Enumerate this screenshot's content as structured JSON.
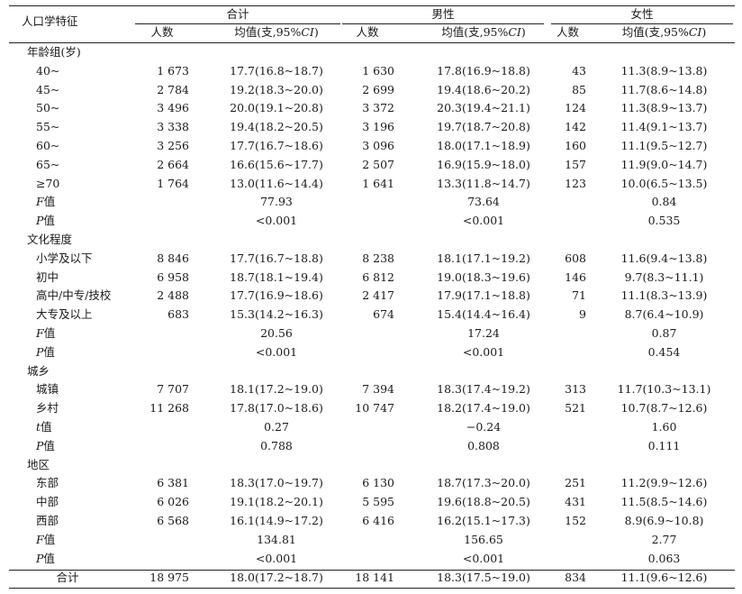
{
  "header": {
    "stub": "人口学特征",
    "groups": [
      "合计",
      "男性",
      "女性"
    ],
    "col_n": "人数",
    "col_mean_prefix": "均值(支,95%",
    "col_mean_ci": "CI",
    "col_mean_suffix": ")"
  },
  "sections": [
    {
      "title": "年龄组(岁)",
      "rows": [
        {
          "label": "40~",
          "t_n": "1 673",
          "t_mean": "17.7(16.8~18.7)",
          "m_n": "1 630",
          "m_mean": "17.8(16.9~18.8)",
          "f_n": "43",
          "f_mean": "11.3(8.9~13.8)"
        },
        {
          "label": "45~",
          "t_n": "2 784",
          "t_mean": "19.2(18.3~20.0)",
          "m_n": "2 699",
          "m_mean": "19.4(18.6~20.2)",
          "f_n": "85",
          "f_mean": "11.7(8.6~14.8)"
        },
        {
          "label": "50~",
          "t_n": "3 496",
          "t_mean": "20.0(19.1~20.8)",
          "m_n": "3 372",
          "m_mean": "20.3(19.4~21.1)",
          "f_n": "124",
          "f_mean": "11.3(8.9~13.7)"
        },
        {
          "label": "55~",
          "t_n": "3 338",
          "t_mean": "19.4(18.2~20.5)",
          "m_n": "3 196",
          "m_mean": "19.7(18.7~20.8)",
          "f_n": "142",
          "f_mean": "11.4(9.1~13.7)"
        },
        {
          "label": "60~",
          "t_n": "3 256",
          "t_mean": "17.7(16.7~18.6)",
          "m_n": "3 096",
          "m_mean": "18.0(17.1~18.9)",
          "f_n": "160",
          "f_mean": "11.1(9.5~12.7)"
        },
        {
          "label": "65~",
          "t_n": "2 664",
          "t_mean": "16.6(15.6~17.7)",
          "m_n": "2 507",
          "m_mean": "16.9(15.9~18.0)",
          "f_n": "157",
          "f_mean": "11.9(9.0~14.7)"
        },
        {
          "label": "≥70",
          "t_n": "1 764",
          "t_mean": "13.0(11.6~14.4)",
          "m_n": "1 641",
          "m_mean": "13.3(11.8~14.7)",
          "f_n": "123",
          "f_mean": "10.0(6.5~13.5)"
        }
      ],
      "stats": [
        {
          "sym": "F",
          "suffix": "值",
          "t": "77.93",
          "m": "73.64",
          "f": "0.84"
        },
        {
          "sym": "P",
          "suffix": "值",
          "t": "<0.001",
          "m": "<0.001",
          "f": "0.535"
        }
      ]
    },
    {
      "title": "文化程度",
      "rows": [
        {
          "label": "小学及以下",
          "t_n": "8 846",
          "t_mean": "17.7(16.7~18.8)",
          "m_n": "8 238",
          "m_mean": "18.1(17.1~19.2)",
          "f_n": "608",
          "f_mean": "11.6(9.4~13.8)"
        },
        {
          "label": "初中",
          "t_n": "6 958",
          "t_mean": "18.7(18.1~19.4)",
          "m_n": "6 812",
          "m_mean": "19.0(18.3~19.6)",
          "f_n": "146",
          "f_mean": "9.7(8.3~11.1)"
        },
        {
          "label": "高中/中专/技校",
          "t_n": "2 488",
          "t_mean": "17.7(16.9~18.6)",
          "m_n": "2 417",
          "m_mean": "17.9(17.1~18.8)",
          "f_n": "71",
          "f_mean": "11.1(8.3~13.9)"
        },
        {
          "label": "大专及以上",
          "t_n": "683",
          "t_mean": "15.3(14.2~16.3)",
          "m_n": "674",
          "m_mean": "15.4(14.4~16.4)",
          "f_n": "9",
          "f_mean": "8.7(6.4~10.9)"
        }
      ],
      "stats": [
        {
          "sym": "F",
          "suffix": "值",
          "t": "20.56",
          "m": "17.24",
          "f": "0.87"
        },
        {
          "sym": "P",
          "suffix": "值",
          "t": "<0.001",
          "m": "<0.001",
          "f": "0.454"
        }
      ]
    },
    {
      "title": "城乡",
      "rows": [
        {
          "label": "城镇",
          "t_n": "7 707",
          "t_mean": "18.1(17.2~19.0)",
          "m_n": "7 394",
          "m_mean": "18.3(17.4~19.2)",
          "f_n": "313",
          "f_mean": "11.7(10.3~13.1)"
        },
        {
          "label": "乡村",
          "t_n": "11 268",
          "t_mean": "17.8(17.0~18.6)",
          "m_n": "10 747",
          "m_mean": "18.2(17.4~19.0)",
          "f_n": "521",
          "f_mean": "10.7(8.7~12.6)"
        }
      ],
      "stats": [
        {
          "sym": "t",
          "suffix": "值",
          "t": "0.27",
          "m": "−0.24",
          "f": "1.60"
        },
        {
          "sym": "P",
          "suffix": "值",
          "t": "0.788",
          "m": "0.808",
          "f": "0.111"
        }
      ]
    },
    {
      "title": "地区",
      "rows": [
        {
          "label": "东部",
          "t_n": "6 381",
          "t_mean": "18.3(17.0~19.7)",
          "m_n": "6 130",
          "m_mean": "18.7(17.3~20.0)",
          "f_n": "251",
          "f_mean": "11.2(9.9~12.6)"
        },
        {
          "label": "中部",
          "t_n": "6 026",
          "t_mean": "19.1(18.2~20.1)",
          "m_n": "5 595",
          "m_mean": "19.6(18.8~20.5)",
          "f_n": "431",
          "f_mean": "11.5(8.5~14.6)"
        },
        {
          "label": "西部",
          "t_n": "6 568",
          "t_mean": "16.1(14.9~17.2)",
          "m_n": "6 416",
          "m_mean": "16.2(15.1~17.3)",
          "f_n": "152",
          "f_mean": "8.9(6.9~10.8)"
        }
      ],
      "stats": [
        {
          "sym": "F",
          "suffix": "值",
          "t": "134.81",
          "m": "156.65",
          "f": "2.77"
        },
        {
          "sym": "P",
          "suffix": "值",
          "t": "<0.001",
          "m": "<0.001",
          "f": "0.063"
        }
      ]
    }
  ],
  "total": {
    "label": "合计",
    "t_n": "18 975",
    "t_mean": "18.0(17.2~18.7)",
    "m_n": "18 141",
    "m_mean": "18.3(17.5~19.0)",
    "f_n": "834",
    "f_mean": "11.1(9.6~12.6)"
  }
}
